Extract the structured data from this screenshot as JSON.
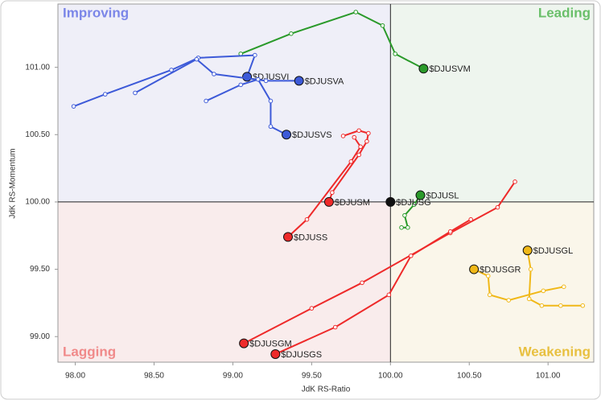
{
  "chart_data": {
    "type": "rrg",
    "x_label": "JdK RS-Ratio",
    "y_label": "JdK RS-Momentum",
    "xlim": [
      97.89,
      101.29
    ],
    "ylim": [
      98.81,
      101.47
    ],
    "xticks": [
      {
        "value": 98,
        "label": "98.00"
      },
      {
        "value": 98.5,
        "label": "98.50"
      },
      {
        "value": 99,
        "label": "99.00"
      },
      {
        "value": 99.5,
        "label": "99.50"
      },
      {
        "value": 100,
        "label": "100.00"
      },
      {
        "value": 100.5,
        "label": "100.50"
      },
      {
        "value": 101,
        "label": "101.00"
      }
    ],
    "yticks": [
      {
        "value": 99,
        "label": "99.00"
      },
      {
        "value": 99.5,
        "label": "99.50"
      },
      {
        "value": 100,
        "label": "100.00"
      },
      {
        "value": 100.5,
        "label": "100.50"
      },
      {
        "value": 101,
        "label": "101.00"
      }
    ],
    "center": [
      100,
      100
    ],
    "quadrants": [
      {
        "name": "Improving",
        "color": "#7b86e8",
        "fill": "#efeff8"
      },
      {
        "name": "Leading",
        "color": "#6abf6a",
        "fill": "#eef5ee"
      },
      {
        "name": "Lagging",
        "color": "#f08a8a",
        "fill": "#f9ecec"
      },
      {
        "name": "Weakening",
        "color": "#e8c040",
        "fill": "#faf6ea"
      }
    ],
    "series": [
      {
        "name": "$DJUSVM",
        "color": "#2a9a2a",
        "x": [
          99.05,
          99.37,
          99.78,
          99.95,
          100.03,
          100.21
        ],
        "y": [
          101.1,
          101.25,
          101.41,
          101.31,
          101.1,
          100.99
        ]
      },
      {
        "name": "$DJUSVI",
        "color": "#3d5ad8",
        "x": [
          97.99,
          98.19,
          98.61,
          98.78,
          99.14,
          99.09
        ],
        "y": [
          100.71,
          100.8,
          100.98,
          101.07,
          101.09,
          100.93
        ]
      },
      {
        "name": "$DJUSVA",
        "color": "#3d5ad8",
        "x": [
          98.38,
          98.77,
          98.88,
          99.21,
          99.42
        ],
        "y": [
          100.81,
          101.06,
          100.95,
          100.9,
          100.9
        ]
      },
      {
        "name": "$DJUSVS",
        "color": "#3d5ad8",
        "x": [
          98.83,
          99.05,
          99.16,
          99.24,
          99.24,
          99.34
        ],
        "y": [
          100.75,
          100.87,
          100.91,
          100.75,
          100.56,
          100.5
        ]
      },
      {
        "name": "$DJUSM",
        "color": "#ee2a2a",
        "x": [
          99.7,
          99.8,
          99.86,
          99.85,
          99.8,
          99.63,
          99.61
        ],
        "y": [
          100.49,
          100.53,
          100.51,
          100.45,
          100.35,
          100.07,
          100.0
        ]
      },
      {
        "name": "$DJUSS",
        "color": "#ee2a2a",
        "x": [
          99.77,
          99.81,
          99.75,
          99.47,
          99.35
        ],
        "y": [
          100.48,
          100.41,
          100.3,
          99.87,
          99.74
        ]
      },
      {
        "name": "$DJUSGM",
        "color": "#ee2a2a",
        "x": [
          100.79,
          100.68,
          100.38,
          99.82,
          99.5,
          99.07
        ],
        "y": [
          100.15,
          99.96,
          99.77,
          99.4,
          99.21,
          98.95
        ]
      },
      {
        "name": "$DJUSGS",
        "color": "#ee2a2a",
        "x": [
          100.51,
          100.38,
          100.13,
          99.99,
          99.65,
          99.27
        ],
        "y": [
          99.87,
          99.78,
          99.6,
          99.31,
          99.07,
          98.87
        ]
      },
      {
        "name": "$DJUSL",
        "color": "#2a9a2a",
        "x": [
          100.07,
          100.11,
          100.09,
          100.15,
          100.19
        ],
        "y": [
          99.81,
          99.81,
          99.9,
          99.98,
          100.05
        ]
      },
      {
        "name": "$DJUSG",
        "color": "#111111",
        "x": [
          100
        ],
        "y": [
          100
        ]
      },
      {
        "name": "$DJUSGL",
        "color": "#f0b818",
        "x": [
          101.22,
          101.08,
          100.96,
          100.88,
          100.89,
          100.87
        ],
        "y": [
          99.23,
          99.23,
          99.23,
          99.28,
          99.5,
          99.64
        ]
      },
      {
        "name": "$DJUSGR",
        "color": "#f0b818",
        "x": [
          101.1,
          100.97,
          100.75,
          100.63,
          100.62,
          100.53
        ],
        "y": [
          99.37,
          99.34,
          99.27,
          99.31,
          99.45,
          99.5
        ]
      }
    ]
  }
}
